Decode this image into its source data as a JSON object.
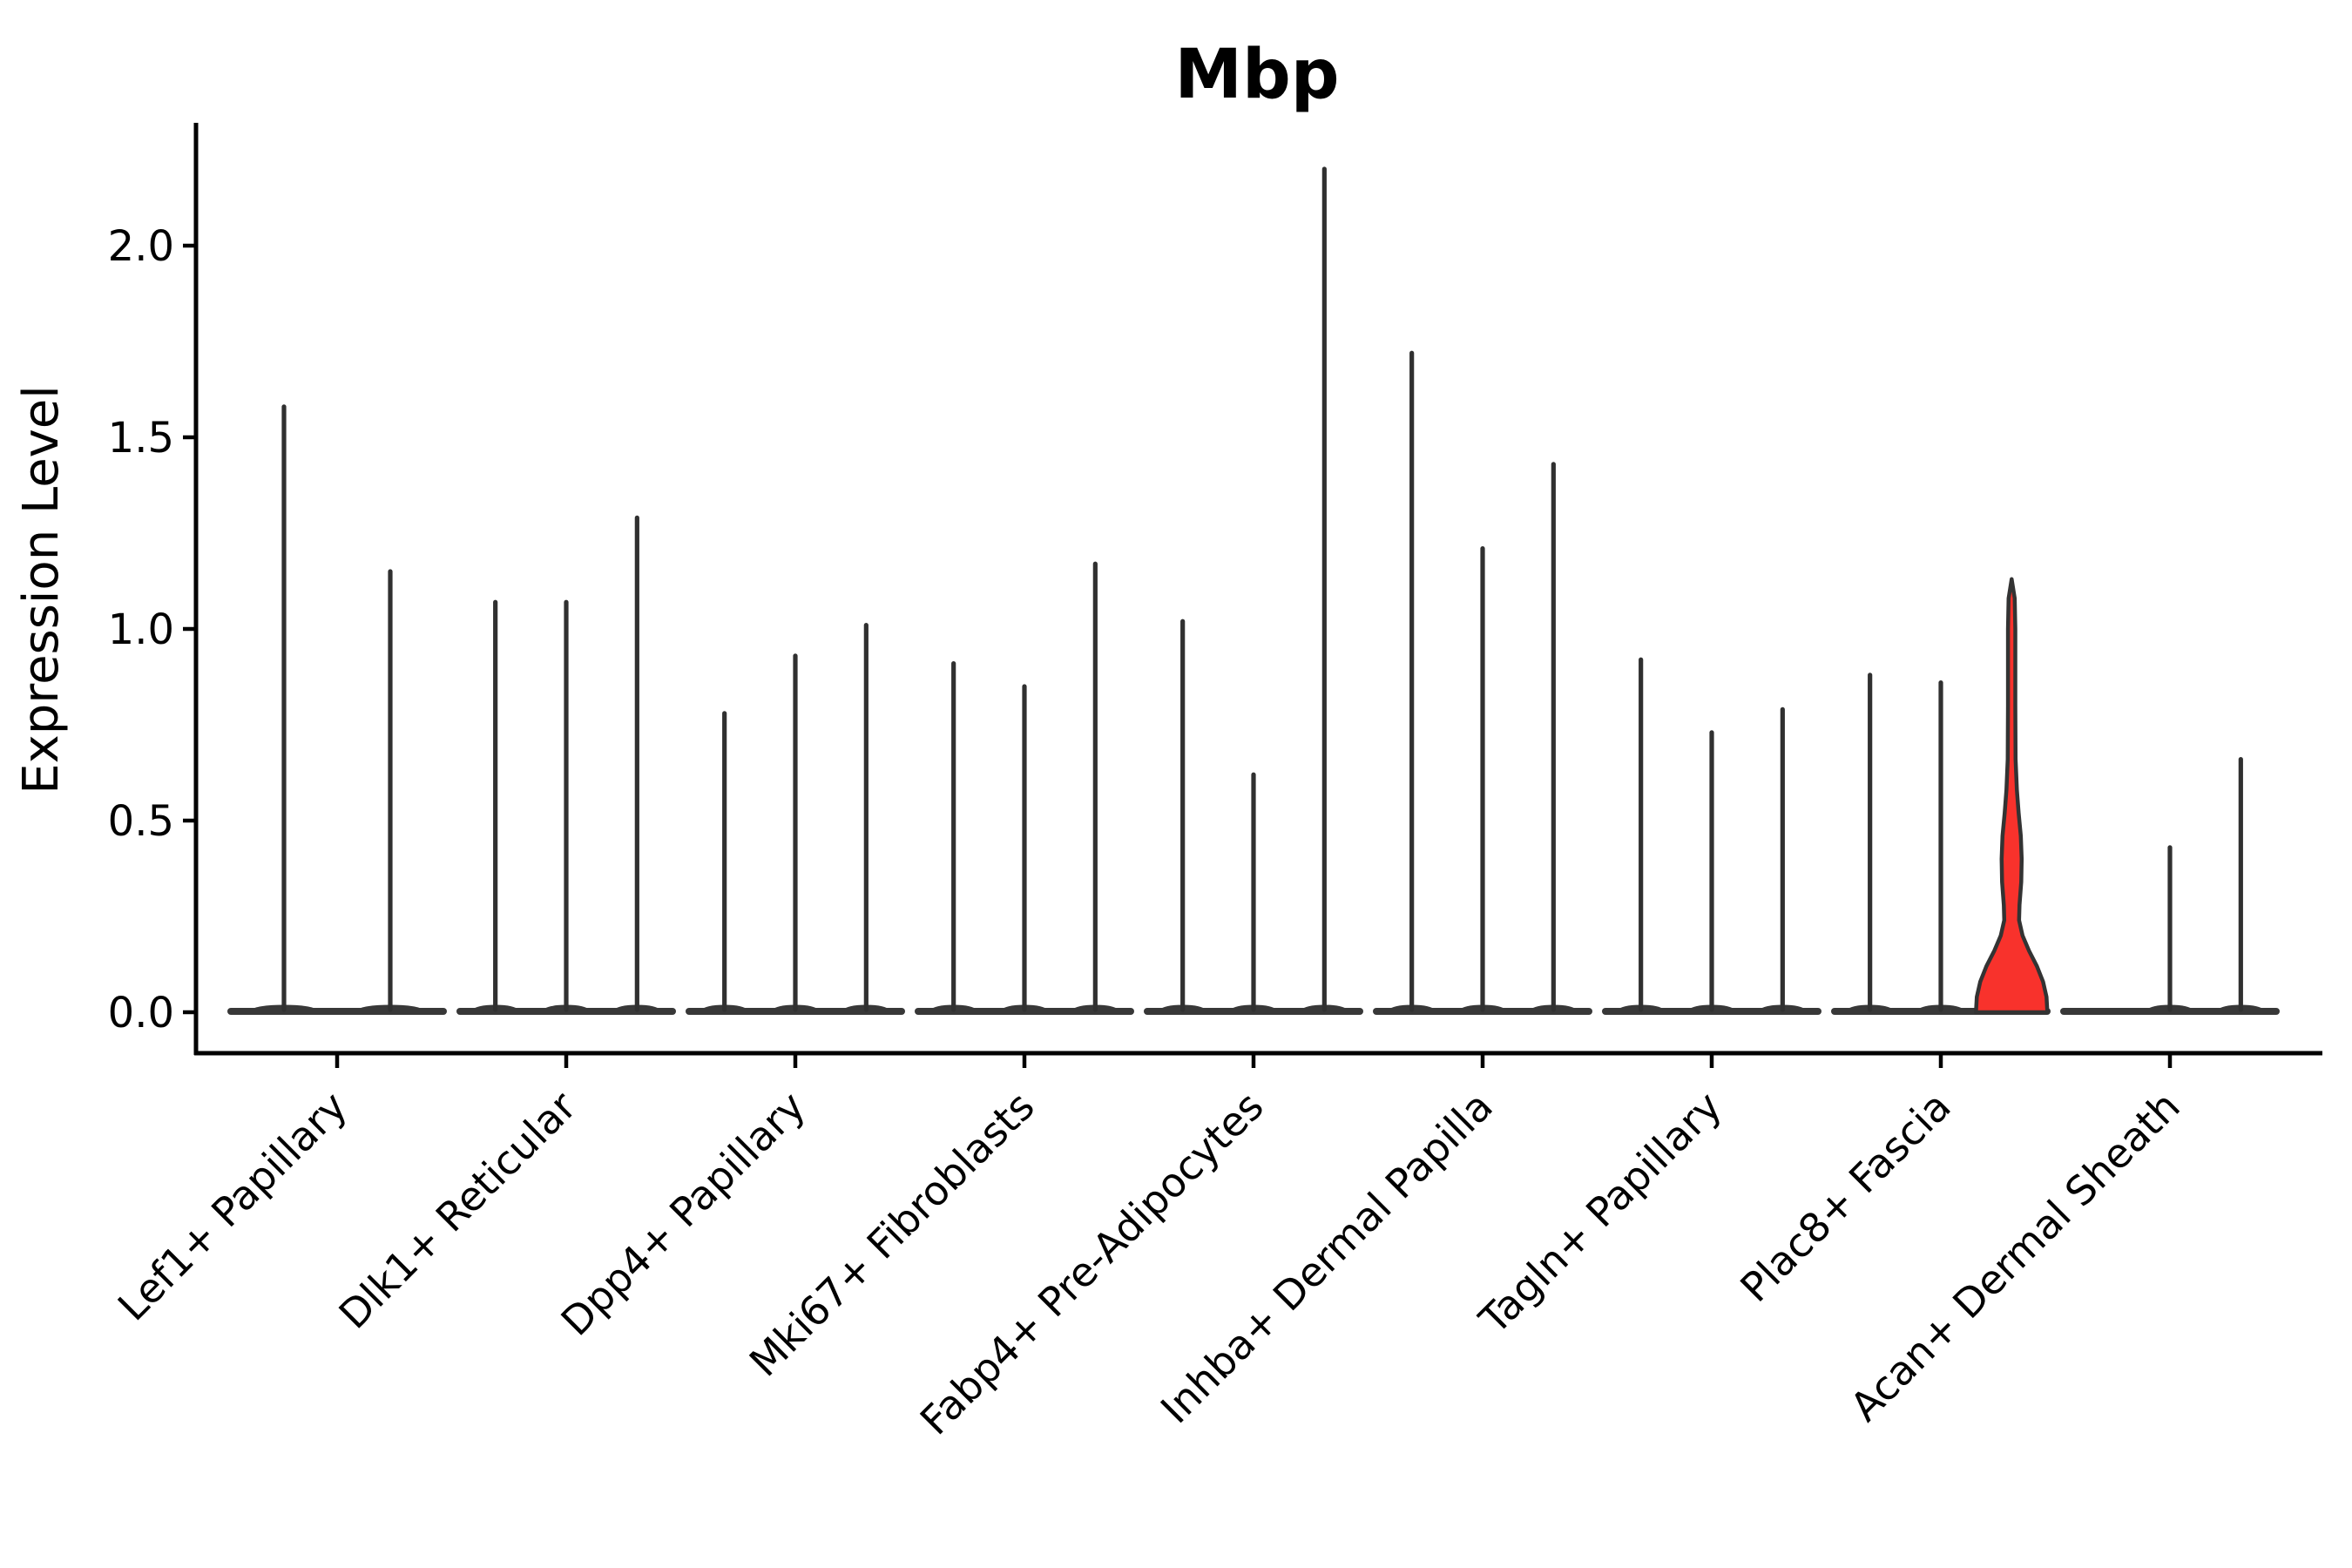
{
  "page": {
    "background": "#ffffff"
  },
  "title": {
    "text": "Mbp"
  },
  "y_axis": {
    "label": "Expression Level",
    "tick_labels": [
      "0.0",
      "0.5",
      "1.0",
      "1.5",
      "2.0"
    ],
    "tick_values": [
      0,
      0.5,
      1,
      1.5,
      2
    ]
  },
  "colors": {
    "spike_stroke": "#303030",
    "baseline_stroke": "#383838",
    "highlight_fill": "#f8322c",
    "highlight_stroke": "#333333",
    "axis": "#000000",
    "text": "#000000",
    "background": "#ffffff"
  },
  "chart_data": {
    "type": "violin",
    "title": "Mbp",
    "xlabel": "",
    "ylabel": "Expression Level",
    "yticks": [
      0,
      0.5,
      1,
      1.5,
      2
    ],
    "ylim": [
      -0.11,
      2.32
    ],
    "grid": false,
    "legend": "none",
    "note": "Grouped stacked-violin plot; most violins collapse to a flat base at 0 with a thin spike to their max expression value. The third violin of Plac8+ Fascia is filled red with a visible density bulge.",
    "categories": [
      {
        "label": "Lef1+ Papillary",
        "violins": [
          {
            "max": 1.58
          },
          {
            "max": 1.15
          }
        ]
      },
      {
        "label": "Dlk1+ Reticular",
        "violins": [
          {
            "max": 1.07
          },
          {
            "max": 1.07
          },
          {
            "max": 1.29
          }
        ]
      },
      {
        "label": "Dpp4+ Papillary",
        "violins": [
          {
            "max": 0.78
          },
          {
            "max": 0.93
          },
          {
            "max": 1.01
          }
        ]
      },
      {
        "label": "Mki67+ Fibroblasts",
        "violins": [
          {
            "max": 0.91
          },
          {
            "max": 0.85
          },
          {
            "max": 1.17
          }
        ]
      },
      {
        "label": "Fabp4+ Pre-Adipocytes",
        "violins": [
          {
            "max": 1.02
          },
          {
            "max": 0.62
          },
          {
            "max": 2.2
          }
        ]
      },
      {
        "label": "Inhba+ Dermal Papilla",
        "violins": [
          {
            "max": 1.72
          },
          {
            "max": 1.21
          },
          {
            "max": 1.43
          }
        ]
      },
      {
        "label": "Tagln+ Papillary",
        "violins": [
          {
            "max": 0.92
          },
          {
            "max": 0.73
          },
          {
            "max": 0.79
          }
        ]
      },
      {
        "label": "Plac8+ Fascia",
        "violins": [
          {
            "max": 0.88
          },
          {
            "max": 0.86
          },
          {
            "max": 1.13,
            "highlight": true,
            "profile": [
              [
                0,
                41
              ],
              [
                0.04,
                40
              ],
              [
                0.08,
                36
              ],
              [
                0.12,
                29
              ],
              [
                0.16,
                20
              ],
              [
                0.2,
                12.5
              ],
              [
                0.24,
                8.5
              ],
              [
                0.28,
                9
              ],
              [
                0.34,
                11
              ],
              [
                0.4,
                11.5
              ],
              [
                0.46,
                10.5
              ],
              [
                0.52,
                8
              ],
              [
                0.58,
                6
              ],
              [
                0.66,
                4.5
              ],
              [
                0.8,
                4.2
              ],
              [
                1.0,
                4.2
              ],
              [
                1.08,
                3.5
              ],
              [
                1.13,
                0
              ]
            ]
          }
        ]
      },
      {
        "label": "Acan+ Dermal Sheath",
        "violins": [
          {
            "max": 0
          },
          {
            "max": 0.43
          },
          {
            "max": 0.66
          }
        ]
      }
    ]
  }
}
